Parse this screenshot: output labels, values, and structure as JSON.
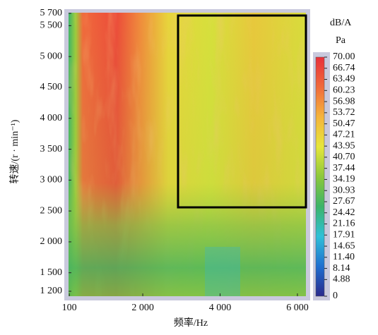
{
  "chart_data": {
    "type": "heatmap",
    "x_label": "频率/Hz",
    "y_label": "转速/(r · min⁻¹)",
    "xlim": [
      80,
      6220
    ],
    "xticks": [
      100,
      {
        "value": 2000,
        "label": "2 000"
      },
      {
        "value": 4000,
        "label": "4 000"
      },
      {
        "value": 6000,
        "label": "6 000"
      }
    ],
    "ylim": [
      1120,
      5710
    ],
    "yticks": [
      {
        "value": 1200,
        "label": "1 200"
      },
      {
        "value": 1500,
        "label": "1 500"
      },
      {
        "value": 2000,
        "label": "2 000"
      },
      {
        "value": 2500,
        "label": "2 500"
      },
      {
        "value": 3000,
        "label": "3 000"
      },
      {
        "value": 3500,
        "label": "3 500"
      },
      {
        "value": 4000,
        "label": "4 000"
      },
      {
        "value": 4500,
        "label": "4 500"
      },
      {
        "value": 5000,
        "label": "5 000"
      },
      {
        "value": 5500,
        "label": "5 500"
      },
      {
        "value": 5700,
        "label": "5 700"
      }
    ],
    "colorbar": {
      "title": "dB/A",
      "unit": "Pa",
      "lim": [
        0,
        70
      ],
      "colors": [
        "#2a2a8c",
        "#1f6fd0",
        "#2fc0d8",
        "#3cb46a",
        "#8cc83c",
        "#e6e63c",
        "#f5b43c",
        "#f06a3c",
        "#e8303a"
      ],
      "ticks": [
        {
          "value": 70,
          "label": "70.00"
        },
        {
          "value": 66.74,
          "label": "66.74"
        },
        {
          "value": 63.49,
          "label": "63.49"
        },
        {
          "value": 60.23,
          "label": "60.23"
        },
        {
          "value": 56.98,
          "label": "56.98"
        },
        {
          "value": 53.72,
          "label": "53.72"
        },
        {
          "value": 50.47,
          "label": "50.47"
        },
        {
          "value": 47.21,
          "label": "47.21"
        },
        {
          "value": 43.95,
          "label": "43.95"
        },
        {
          "value": 40.7,
          "label": "40.70"
        },
        {
          "value": 37.44,
          "label": "37.44"
        },
        {
          "value": 34.19,
          "label": "34.19"
        },
        {
          "value": 30.93,
          "label": "30.93"
        },
        {
          "value": 27.67,
          "label": "27.67"
        },
        {
          "value": 24.42,
          "label": "24.42"
        },
        {
          "value": 21.16,
          "label": "21.16"
        },
        {
          "value": 17.91,
          "label": "17.91"
        },
        {
          "value": 14.65,
          "label": "14.65"
        },
        {
          "value": 11.4,
          "label": "11.40"
        },
        {
          "value": 8.14,
          "label": "8.14"
        },
        {
          "value": 4.88,
          "label": "4.88"
        },
        0
      ]
    }
  }
}
